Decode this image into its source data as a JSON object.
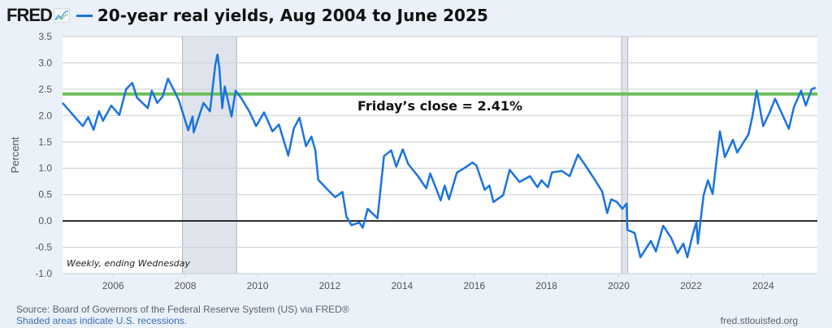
{
  "header": {
    "logo": "FRED",
    "title": "20-year real yields, Aug 2004 to June 2025"
  },
  "footer": {
    "source": "Source: Board of Governors of the Federal Reserve System (US) via FRED®",
    "recession_note": "Shaded areas indicate U.S. recessions.",
    "site": "fred.stlouisfed.org"
  },
  "colors": {
    "series": "#1a73e0",
    "reference": "#6cbf5a",
    "zero": "#111111",
    "recession": "#dfe4ec"
  },
  "chart_data": {
    "type": "line",
    "title": "20-year real yields, Aug 2004 to June 2025",
    "ylabel": "Percent",
    "xlabel": "",
    "frequency_note": "Weekly, ending Wednesday",
    "annotation": "Friday’s close = 2.41%",
    "reference_line": 2.41,
    "zero_line": 0,
    "xlim": [
      2004.6,
      2025.5
    ],
    "ylim": [
      -1.0,
      3.5
    ],
    "xticks": [
      2006,
      2008,
      2010,
      2012,
      2014,
      2016,
      2018,
      2020,
      2022,
      2024
    ],
    "yticks": [
      "3.5",
      "3.0",
      "2.5",
      "2.0",
      "1.5",
      "1.0",
      "0.5",
      "0.0",
      "-0.5",
      "-1.0"
    ],
    "grid": true,
    "recessions": [
      [
        2007.92,
        2009.42
      ],
      [
        2020.08,
        2020.25
      ]
    ],
    "series": [
      {
        "name": "20-year real yield",
        "x": [
          2004.6,
          2005.16,
          2005.31,
          2005.46,
          2005.61,
          2005.72,
          2005.95,
          2006.17,
          2006.36,
          2006.53,
          2006.66,
          2006.96,
          2007.07,
          2007.22,
          2007.37,
          2007.52,
          2007.67,
          2007.82,
          2008.08,
          2008.2,
          2008.23,
          2008.5,
          2008.68,
          2008.83,
          2008.89,
          2008.94,
          2009.02,
          2009.09,
          2009.28,
          2009.39,
          2009.54,
          2009.77,
          2009.96,
          2010.18,
          2010.41,
          2010.59,
          2010.85,
          2011.0,
          2011.16,
          2011.34,
          2011.49,
          2011.6,
          2011.68,
          2011.86,
          2012.0,
          2012.15,
          2012.35,
          2012.46,
          2012.6,
          2012.82,
          2012.91,
          2013.05,
          2013.32,
          2013.5,
          2013.7,
          2013.84,
          2014.02,
          2014.17,
          2014.44,
          2014.67,
          2014.78,
          2015.07,
          2015.18,
          2015.3,
          2015.52,
          2015.72,
          2015.95,
          2016.06,
          2016.29,
          2016.42,
          2016.53,
          2016.8,
          2016.98,
          2017.25,
          2017.54,
          2017.75,
          2017.86,
          2018.04,
          2018.15,
          2018.42,
          2018.64,
          2018.87,
          2019.05,
          2019.32,
          2019.54,
          2019.68,
          2019.79,
          2019.95,
          2020.1,
          2020.22,
          2020.24,
          2020.44,
          2020.6,
          2020.89,
          2021.03,
          2021.23,
          2021.45,
          2021.63,
          2021.79,
          2021.9,
          2022.04,
          2022.15,
          2022.19,
          2022.35,
          2022.47,
          2022.6,
          2022.8,
          2022.94,
          2023.16,
          2023.28,
          2023.59,
          2023.7,
          2023.82,
          2024.0,
          2024.18,
          2024.33,
          2024.71,
          2024.85,
          2025.05,
          2025.18,
          2025.34,
          2025.45
        ],
        "values": [
          2.24,
          1.8,
          1.97,
          1.73,
          2.08,
          1.9,
          2.19,
          2.01,
          2.5,
          2.62,
          2.34,
          2.14,
          2.47,
          2.24,
          2.36,
          2.7,
          2.5,
          2.29,
          1.72,
          1.98,
          1.68,
          2.24,
          2.08,
          2.96,
          3.16,
          2.91,
          2.14,
          2.55,
          1.98,
          2.47,
          2.34,
          2.08,
          1.8,
          2.06,
          1.7,
          1.83,
          1.24,
          1.75,
          1.96,
          1.42,
          1.6,
          1.34,
          0.78,
          0.65,
          0.55,
          0.45,
          0.55,
          0.08,
          -0.08,
          -0.03,
          -0.13,
          0.23,
          0.05,
          1.23,
          1.34,
          1.03,
          1.36,
          1.08,
          0.85,
          0.62,
          0.9,
          0.39,
          0.67,
          0.41,
          0.92,
          1.0,
          1.11,
          1.05,
          0.59,
          0.67,
          0.36,
          0.49,
          0.97,
          0.74,
          0.85,
          0.64,
          0.77,
          0.64,
          0.92,
          0.95,
          0.85,
          1.26,
          1.08,
          0.8,
          0.56,
          0.15,
          0.41,
          0.36,
          0.23,
          0.33,
          -0.17,
          -0.23,
          -0.69,
          -0.38,
          -0.58,
          -0.09,
          -0.32,
          -0.61,
          -0.43,
          -0.69,
          -0.28,
          -0.02,
          -0.43,
          0.49,
          0.77,
          0.51,
          1.7,
          1.21,
          1.54,
          1.3,
          1.64,
          1.98,
          2.47,
          1.8,
          2.06,
          2.32,
          1.75,
          2.16,
          2.47,
          2.19,
          2.5,
          2.53
        ]
      }
    ]
  }
}
